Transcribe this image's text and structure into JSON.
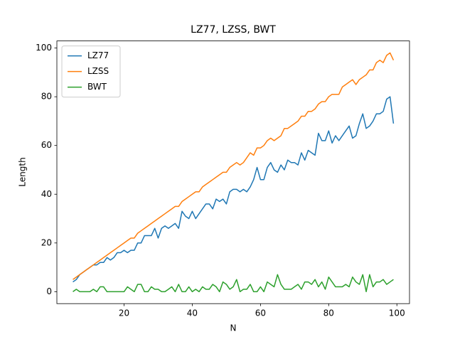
{
  "chart_data": {
    "type": "line",
    "title": "LZ77, LZSS, BWT",
    "xlabel": "N",
    "ylabel": "Length",
    "x": [
      5,
      6,
      7,
      8,
      9,
      10,
      11,
      12,
      13,
      14,
      15,
      16,
      17,
      18,
      19,
      20,
      21,
      22,
      23,
      24,
      25,
      26,
      27,
      28,
      29,
      30,
      31,
      32,
      33,
      34,
      35,
      36,
      37,
      38,
      39,
      40,
      41,
      42,
      43,
      44,
      45,
      46,
      47,
      48,
      49,
      50,
      51,
      52,
      53,
      54,
      55,
      56,
      57,
      58,
      59,
      60,
      61,
      62,
      63,
      64,
      65,
      66,
      67,
      68,
      69,
      70,
      71,
      72,
      73,
      74,
      75,
      76,
      77,
      78,
      79,
      80,
      81,
      82,
      83,
      84,
      85,
      86,
      87,
      88,
      89,
      90,
      91,
      92,
      93,
      94,
      95,
      96,
      97,
      98,
      99
    ],
    "series": [
      {
        "name": "LZ77",
        "color": "#1f77b4",
        "values": [
          4,
          5,
          7,
          8,
          9,
          10,
          11,
          11,
          12,
          12,
          14,
          13,
          14,
          16,
          16,
          17,
          16,
          17,
          17,
          20,
          20,
          23,
          23,
          23,
          26,
          22,
          26,
          27,
          26,
          27,
          28,
          26,
          33,
          31,
          30,
          33,
          30,
          32,
          34,
          36,
          36,
          34,
          38,
          37,
          38,
          36,
          41,
          42,
          42,
          41,
          42,
          41,
          43,
          46,
          51,
          46,
          46,
          51,
          53,
          50,
          49,
          52,
          50,
          54,
          53,
          53,
          52,
          57,
          54,
          58,
          57,
          56,
          65,
          62,
          62,
          66,
          61,
          64,
          62,
          64,
          66,
          68,
          63,
          64,
          69,
          73,
          67,
          68,
          70,
          73,
          73,
          74,
          79,
          80,
          69
        ]
      },
      {
        "name": "LZSS",
        "color": "#ff7f0e",
        "values": [
          5,
          6,
          7,
          8,
          9,
          10,
          11,
          12,
          13,
          14,
          15,
          16,
          17,
          18,
          19,
          20,
          21,
          22,
          22,
          24,
          25,
          26,
          27,
          28,
          29,
          30,
          31,
          32,
          33,
          34,
          35,
          35,
          37,
          38,
          39,
          40,
          41,
          41,
          43,
          44,
          45,
          46,
          47,
          48,
          49,
          49,
          51,
          52,
          53,
          52,
          53,
          55,
          57,
          56,
          59,
          59,
          60,
          62,
          63,
          62,
          63,
          64,
          67,
          67,
          68,
          69,
          70,
          72,
          72,
          74,
          74,
          75,
          77,
          78,
          78,
          80,
          81,
          81,
          81,
          84,
          85,
          86,
          87,
          85,
          87,
          88,
          89,
          91,
          91,
          94,
          95,
          94,
          97,
          98,
          95
        ]
      },
      {
        "name": "BWT",
        "color": "#2ca02c",
        "values": [
          0,
          1,
          0,
          0,
          0,
          0,
          1,
          0,
          2,
          2,
          0,
          0,
          0,
          0,
          0,
          0,
          2,
          1,
          0,
          3,
          3,
          0,
          0,
          2,
          1,
          1,
          0,
          0,
          1,
          2,
          0,
          3,
          0,
          0,
          2,
          0,
          1,
          0,
          2,
          1,
          1,
          3,
          2,
          0,
          4,
          3,
          1,
          2,
          5,
          0,
          1,
          1,
          3,
          0,
          0,
          2,
          0,
          4,
          3,
          2,
          7,
          3,
          1,
          1,
          1,
          2,
          3,
          1,
          4,
          4,
          3,
          5,
          2,
          4,
          1,
          6,
          4,
          2,
          2,
          2,
          3,
          2,
          6,
          4,
          3,
          7,
          0,
          7,
          2,
          4,
          4,
          5,
          3,
          4,
          5
        ]
      }
    ],
    "xlim": [
      0.3,
      103.7
    ],
    "ylim": [
      -4.9,
      102.9
    ],
    "xticks": [
      20,
      40,
      60,
      80,
      100
    ],
    "yticks": [
      0,
      20,
      40,
      60,
      80,
      100
    ],
    "legend": "upper left"
  }
}
